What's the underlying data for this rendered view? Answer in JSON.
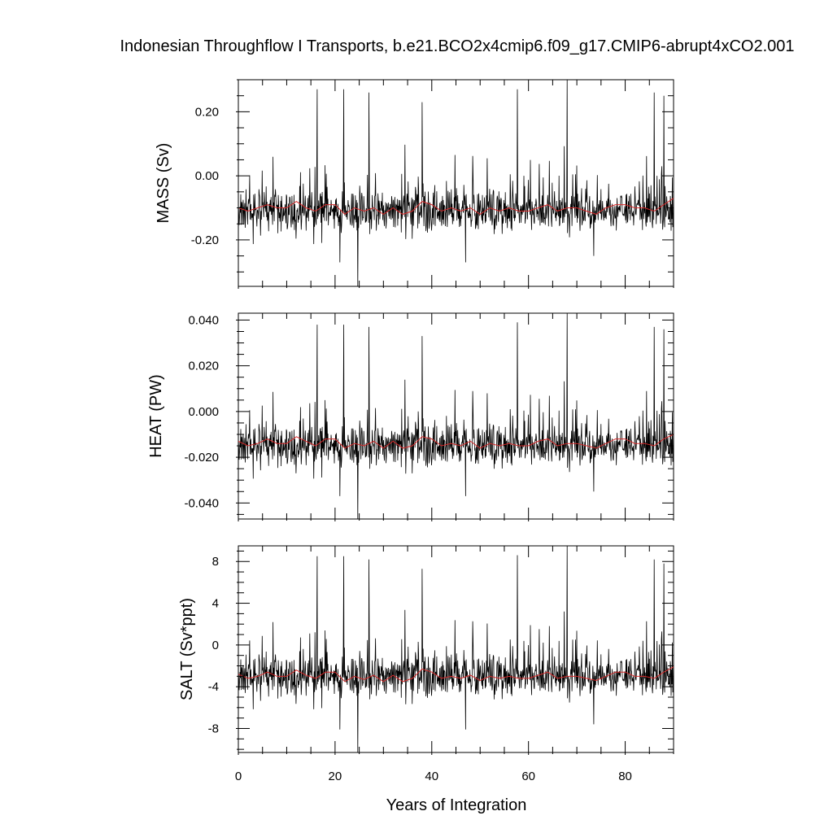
{
  "title": "Indonesian Throughflow I Transports, b.e21.BCO2x4cmip6.f09_g17.CMIP6-abrupt4xCO2.001",
  "chart_data": [
    {
      "type": "line",
      "ylabel": "MASS (Sv)",
      "xlabel": "",
      "xlim": [
        0,
        90
      ],
      "ylim": [
        -0.345,
        0.3
      ],
      "yticks": [
        -0.2,
        0.0,
        0.2
      ],
      "ytick_labels": [
        "-0.20",
        "0.00",
        "0.20"
      ],
      "x_ticks": [
        0,
        20,
        40,
        60,
        80
      ],
      "series": [
        {
          "color": "#000000",
          "values_approx": {
            "mean": -0.11,
            "min": -0.345,
            "max": 0.3
          },
          "peaks": [
            [
              16.3,
              0.27
            ],
            [
              21.8,
              0.27
            ],
            [
              27.0,
              0.26
            ],
            [
              38.0,
              0.23
            ],
            [
              57.7,
              0.27
            ],
            [
              68.0,
              0.3
            ],
            [
              86.0,
              0.26
            ],
            [
              88.0,
              0.25
            ]
          ],
          "troughs": [
            [
              24.7,
              -0.345
            ],
            [
              21.0,
              -0.27
            ],
            [
              47.0,
              -0.27
            ],
            [
              73.5,
              -0.25
            ]
          ]
        },
        {
          "color": "#d62728",
          "x": [
            0,
            2,
            4,
            6,
            8,
            10,
            12,
            14,
            16,
            18,
            20,
            22,
            24,
            26,
            28,
            30,
            32,
            34,
            36,
            38,
            40,
            42,
            44,
            46,
            48,
            50,
            52,
            54,
            56,
            58,
            60,
            62,
            64,
            66,
            68,
            70,
            72,
            74,
            76,
            78,
            80,
            82,
            84,
            86,
            88,
            90
          ],
          "y": [
            -0.1,
            -0.11,
            -0.1,
            -0.09,
            -0.1,
            -0.1,
            -0.08,
            -0.1,
            -0.11,
            -0.09,
            -0.09,
            -0.12,
            -0.1,
            -0.11,
            -0.1,
            -0.12,
            -0.1,
            -0.12,
            -0.11,
            -0.08,
            -0.09,
            -0.11,
            -0.1,
            -0.11,
            -0.1,
            -0.12,
            -0.1,
            -0.11,
            -0.1,
            -0.11,
            -0.11,
            -0.1,
            -0.09,
            -0.11,
            -0.1,
            -0.1,
            -0.11,
            -0.12,
            -0.1,
            -0.09,
            -0.09,
            -0.1,
            -0.1,
            -0.11,
            -0.09,
            -0.07
          ]
        }
      ]
    },
    {
      "type": "line",
      "ylabel": "HEAT (PW)",
      "xlabel": "",
      "xlim": [
        0,
        90
      ],
      "ylim": [
        -0.047,
        0.043
      ],
      "yticks": [
        -0.04,
        -0.02,
        0.0,
        0.02,
        0.04
      ],
      "ytick_labels": [
        "-0.040",
        "-0.020",
        "0.000",
        "0.020",
        "0.040"
      ],
      "x_ticks": [
        0,
        20,
        40,
        60,
        80
      ],
      "series": [
        {
          "color": "#000000",
          "values_approx": {
            "mean": -0.015,
            "min": -0.047,
            "max": 0.043
          },
          "peaks": [
            [
              16.3,
              0.038
            ],
            [
              21.8,
              0.038
            ],
            [
              27.0,
              0.037
            ],
            [
              38.0,
              0.033
            ],
            [
              57.7,
              0.039
            ],
            [
              68.0,
              0.043
            ],
            [
              86.0,
              0.037
            ],
            [
              88.0,
              0.036
            ]
          ],
          "troughs": [
            [
              24.7,
              -0.047
            ],
            [
              21.0,
              -0.037
            ],
            [
              47.0,
              -0.037
            ],
            [
              73.5,
              -0.035
            ]
          ]
        },
        {
          "color": "#d62728",
          "x": [
            0,
            2,
            4,
            6,
            8,
            10,
            12,
            14,
            16,
            18,
            20,
            22,
            24,
            26,
            28,
            30,
            32,
            34,
            36,
            38,
            40,
            42,
            44,
            46,
            48,
            50,
            52,
            54,
            56,
            58,
            60,
            62,
            64,
            66,
            68,
            70,
            72,
            74,
            76,
            78,
            80,
            82,
            84,
            86,
            88,
            90
          ],
          "y": [
            -0.013,
            -0.015,
            -0.014,
            -0.012,
            -0.014,
            -0.014,
            -0.011,
            -0.013,
            -0.015,
            -0.012,
            -0.012,
            -0.016,
            -0.014,
            -0.015,
            -0.013,
            -0.016,
            -0.013,
            -0.016,
            -0.015,
            -0.011,
            -0.012,
            -0.015,
            -0.014,
            -0.015,
            -0.013,
            -0.016,
            -0.014,
            -0.015,
            -0.014,
            -0.015,
            -0.015,
            -0.013,
            -0.012,
            -0.015,
            -0.014,
            -0.014,
            -0.015,
            -0.016,
            -0.014,
            -0.012,
            -0.012,
            -0.014,
            -0.014,
            -0.015,
            -0.012,
            -0.01
          ]
        }
      ]
    },
    {
      "type": "line",
      "ylabel": "SALT (Sv*ppt)",
      "xlabel": "Years of Integration",
      "xlim": [
        0,
        90
      ],
      "ylim": [
        -10.3,
        9.5
      ],
      "yticks": [
        -8,
        -4,
        0,
        4,
        8
      ],
      "ytick_labels": [
        "-8",
        "-4",
        "0",
        "4",
        "8"
      ],
      "x_ticks": [
        0,
        20,
        40,
        60,
        80
      ],
      "x_tick_labels": [
        "0",
        "20",
        "40",
        "60",
        "80"
      ],
      "series": [
        {
          "color": "#000000",
          "values_approx": {
            "mean": -3.0,
            "min": -10.3,
            "max": 9.5
          },
          "peaks": [
            [
              16.3,
              8.5
            ],
            [
              21.8,
              8.5
            ],
            [
              27.0,
              8.2
            ],
            [
              38.0,
              7.3
            ],
            [
              57.7,
              8.6
            ],
            [
              68.0,
              9.5
            ],
            [
              86.0,
              8.2
            ],
            [
              88.0,
              7.8
            ]
          ],
          "troughs": [
            [
              24.7,
              -10.3
            ],
            [
              21.0,
              -8.1
            ],
            [
              47.0,
              -8.1
            ],
            [
              73.5,
              -7.6
            ]
          ]
        },
        {
          "color": "#d62728",
          "x": [
            0,
            2,
            4,
            6,
            8,
            10,
            12,
            14,
            16,
            18,
            20,
            22,
            24,
            26,
            28,
            30,
            32,
            34,
            36,
            38,
            40,
            42,
            44,
            46,
            48,
            50,
            52,
            54,
            56,
            58,
            60,
            62,
            64,
            66,
            68,
            70,
            72,
            74,
            76,
            78,
            80,
            82,
            84,
            86,
            88,
            90
          ],
          "y": [
            -2.8,
            -3.2,
            -3.0,
            -2.6,
            -3.0,
            -3.0,
            -2.4,
            -2.9,
            -3.2,
            -2.6,
            -2.6,
            -3.5,
            -3.0,
            -3.3,
            -2.9,
            -3.5,
            -2.9,
            -3.5,
            -3.2,
            -2.3,
            -2.6,
            -3.2,
            -3.0,
            -3.2,
            -2.9,
            -3.4,
            -3.0,
            -3.2,
            -3.0,
            -3.2,
            -3.2,
            -2.9,
            -2.6,
            -3.2,
            -3.0,
            -3.0,
            -3.2,
            -3.4,
            -3.0,
            -2.6,
            -2.6,
            -3.0,
            -3.0,
            -3.2,
            -2.6,
            -2.1
          ]
        }
      ]
    }
  ]
}
